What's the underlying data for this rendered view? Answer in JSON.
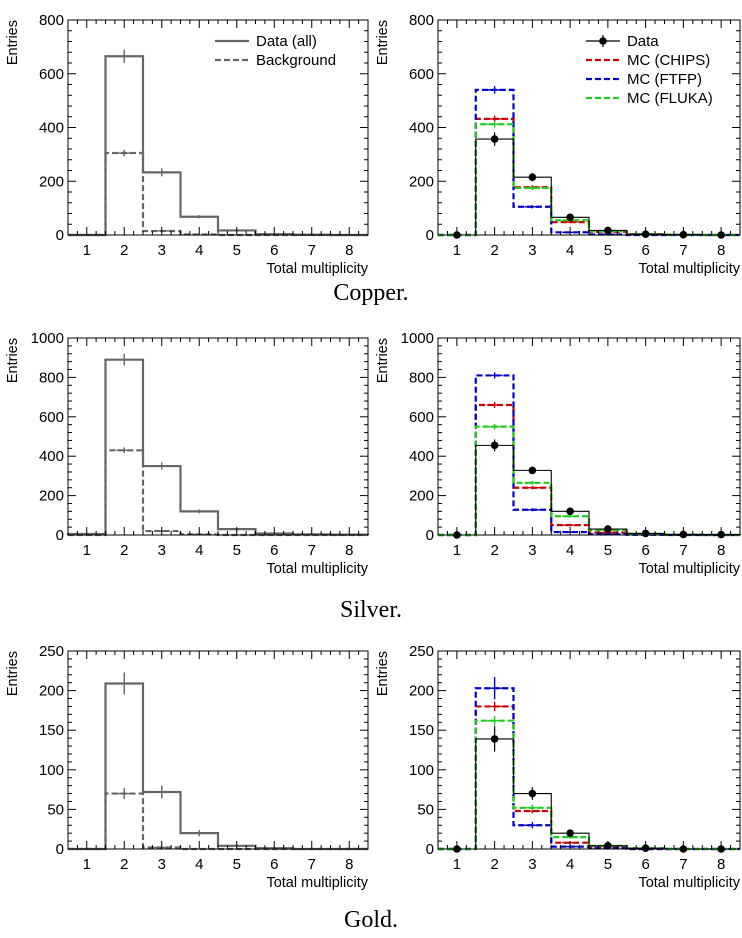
{
  "captions": [
    "Copper.",
    "Silver.",
    "Gold."
  ],
  "chart_data": [
    {
      "type": "bar",
      "panel": "copper-left",
      "xlabel": "Total multiplicity",
      "ylabel": "Entries",
      "xlim": [
        0.5,
        8.5
      ],
      "ylim": [
        0,
        800
      ],
      "xticks": [
        1,
        2,
        3,
        4,
        5,
        6,
        7,
        8
      ],
      "yticks": [
        0,
        200,
        400,
        600,
        800
      ],
      "legend": "top-right",
      "series": [
        {
          "name": "Data (all)",
          "style": "solid",
          "color": "#666666",
          "x": [
            1,
            2,
            3,
            4,
            5,
            6,
            7,
            8
          ],
          "values": [
            0,
            665,
            233,
            68,
            17,
            3,
            1,
            0
          ],
          "errors": [
            0,
            25,
            15,
            6,
            4,
            2,
            1,
            0
          ]
        },
        {
          "name": "Background",
          "style": "dashed",
          "color": "#666666",
          "x": [
            1,
            2,
            3,
            4,
            5,
            6,
            7,
            8
          ],
          "values": [
            0,
            305,
            15,
            2,
            0,
            0,
            0,
            0
          ],
          "errors": [
            0,
            12,
            3,
            0,
            0,
            0,
            0,
            0
          ]
        }
      ]
    },
    {
      "type": "bar",
      "panel": "copper-right",
      "xlabel": "Total multiplicity",
      "ylabel": "Entries",
      "xlim": [
        0.5,
        8.5
      ],
      "ylim": [
        0,
        800
      ],
      "xticks": [
        1,
        2,
        3,
        4,
        5,
        6,
        7,
        8
      ],
      "yticks": [
        0,
        200,
        400,
        600,
        800
      ],
      "legend": "top-right",
      "series": [
        {
          "name": "Data",
          "style": "points",
          "color": "#000000",
          "x": [
            1,
            2,
            3,
            4,
            5,
            6,
            7,
            8
          ],
          "values": [
            0,
            357,
            215,
            66,
            17,
            3,
            1,
            0
          ],
          "errors": [
            0,
            25,
            15,
            6,
            4,
            2,
            1,
            0
          ]
        },
        {
          "name": "MC (CHIPS)",
          "style": "dashed",
          "color": "#cc0000",
          "x": [
            1,
            2,
            3,
            4,
            5,
            6,
            7,
            8
          ],
          "values": [
            0,
            432,
            178,
            48,
            12,
            3,
            1,
            0
          ],
          "errors": [
            0,
            12,
            8,
            4,
            2,
            1,
            0,
            0
          ]
        },
        {
          "name": "MC (FTFP)",
          "style": "dashed",
          "color": "#0000cc",
          "x": [
            1,
            2,
            3,
            4,
            5,
            6,
            7,
            8
          ],
          "values": [
            0,
            540,
            105,
            10,
            2,
            0,
            0,
            0
          ],
          "errors": [
            0,
            14,
            6,
            2,
            1,
            0,
            0,
            0
          ]
        },
        {
          "name": "MC (FLUKA)",
          "style": "dashed",
          "color": "#22cc22",
          "x": [
            1,
            2,
            3,
            4,
            5,
            6,
            7,
            8
          ],
          "values": [
            0,
            412,
            175,
            55,
            14,
            3,
            1,
            0
          ],
          "errors": [
            0,
            12,
            8,
            4,
            2,
            1,
            0,
            0
          ]
        },
        {
          "name": "",
          "style": "total",
          "color": "#000000",
          "x": [
            1,
            2,
            3,
            4,
            5,
            6,
            7,
            8
          ],
          "values": [
            0,
            357,
            215,
            66,
            17,
            3,
            1,
            0
          ],
          "errors": []
        }
      ]
    },
    {
      "type": "bar",
      "panel": "silver-left",
      "xlabel": "Total multiplicity",
      "ylabel": "Entries",
      "xlim": [
        0.5,
        8.5
      ],
      "ylim": [
        0,
        1000
      ],
      "xticks": [
        1,
        2,
        3,
        4,
        5,
        6,
        7,
        8
      ],
      "yticks": [
        0,
        200,
        400,
        600,
        800,
        1000
      ],
      "series": [
        {
          "name": "Data (all)",
          "style": "solid",
          "color": "#666666",
          "x": [
            1,
            2,
            3,
            4,
            5,
            6,
            7,
            8
          ],
          "values": [
            5,
            890,
            350,
            120,
            30,
            8,
            3,
            2
          ],
          "errors": [
            0,
            30,
            18,
            10,
            5,
            3,
            2,
            1
          ]
        },
        {
          "name": "Background",
          "style": "dashed",
          "color": "#666666",
          "x": [
            1,
            2,
            3,
            4,
            5,
            6,
            7,
            8
          ],
          "values": [
            0,
            430,
            20,
            3,
            0,
            0,
            0,
            0
          ],
          "errors": [
            0,
            15,
            4,
            1,
            0,
            0,
            0,
            0
          ]
        }
      ]
    },
    {
      "type": "bar",
      "panel": "silver-right",
      "xlabel": "Total multiplicity",
      "ylabel": "Entries",
      "xlim": [
        0.5,
        8.5
      ],
      "ylim": [
        0,
        1000
      ],
      "xticks": [
        1,
        2,
        3,
        4,
        5,
        6,
        7,
        8
      ],
      "yticks": [
        0,
        200,
        400,
        600,
        800,
        1000
      ],
      "series": [
        {
          "name": "Data",
          "style": "points",
          "color": "#000000",
          "x": [
            1,
            2,
            3,
            4,
            5,
            6,
            7,
            8
          ],
          "values": [
            0,
            455,
            328,
            120,
            30,
            8,
            3,
            2
          ],
          "errors": [
            0,
            30,
            18,
            10,
            5,
            3,
            2,
            1
          ]
        },
        {
          "name": "MC (CHIPS)",
          "style": "dashed",
          "color": "#cc0000",
          "x": [
            1,
            2,
            3,
            4,
            5,
            6,
            7,
            8
          ],
          "values": [
            0,
            660,
            240,
            50,
            12,
            3,
            1,
            0
          ],
          "errors": [
            0,
            15,
            8,
            4,
            2,
            1,
            0,
            0
          ]
        },
        {
          "name": "MC (FTFP)",
          "style": "dashed",
          "color": "#0000cc",
          "x": [
            1,
            2,
            3,
            4,
            5,
            6,
            7,
            8
          ],
          "values": [
            0,
            810,
            128,
            15,
            3,
            1,
            0,
            0
          ],
          "errors": [
            0,
            16,
            8,
            3,
            1,
            0,
            0,
            0
          ]
        },
        {
          "name": "MC (FLUKA)",
          "style": "dashed",
          "color": "#22cc22",
          "x": [
            1,
            2,
            3,
            4,
            5,
            6,
            7,
            8
          ],
          "values": [
            0,
            550,
            265,
            95,
            25,
            6,
            2,
            1
          ],
          "errors": [
            0,
            14,
            10,
            6,
            3,
            1,
            0,
            0
          ]
        },
        {
          "name": "",
          "style": "total",
          "color": "#000000",
          "x": [
            1,
            2,
            3,
            4,
            5,
            6,
            7,
            8
          ],
          "values": [
            0,
            455,
            328,
            120,
            30,
            8,
            3,
            2
          ],
          "errors": []
        }
      ]
    },
    {
      "type": "bar",
      "panel": "gold-left",
      "xlabel": "Total multiplicity",
      "ylabel": "Entries",
      "xlim": [
        0.5,
        8.5
      ],
      "ylim": [
        0,
        250
      ],
      "xticks": [
        1,
        2,
        3,
        4,
        5,
        6,
        7,
        8
      ],
      "yticks": [
        0,
        50,
        100,
        150,
        200,
        250
      ],
      "series": [
        {
          "name": "Data (all)",
          "style": "solid",
          "color": "#666666",
          "x": [
            1,
            2,
            3,
            4,
            5,
            6,
            7,
            8
          ],
          "values": [
            0,
            209,
            72,
            20,
            4,
            1,
            0,
            0
          ],
          "errors": [
            0,
            14,
            8,
            4,
            2,
            1,
            0,
            0
          ]
        },
        {
          "name": "Background",
          "style": "dashed",
          "color": "#666666",
          "x": [
            1,
            2,
            3,
            4,
            5,
            6,
            7,
            8
          ],
          "values": [
            0,
            70,
            2,
            0,
            0,
            0,
            0,
            0
          ],
          "errors": [
            0,
            7,
            1,
            0,
            0,
            0,
            0,
            0
          ]
        }
      ]
    },
    {
      "type": "bar",
      "panel": "gold-right",
      "xlabel": "Total multiplicity",
      "ylabel": "Entries",
      "xlim": [
        0.5,
        8.5
      ],
      "ylim": [
        0,
        250
      ],
      "xticks": [
        1,
        2,
        3,
        4,
        5,
        6,
        7,
        8
      ],
      "yticks": [
        0,
        50,
        100,
        150,
        200,
        250
      ],
      "series": [
        {
          "name": "Data",
          "style": "points",
          "color": "#000000",
          "x": [
            1,
            2,
            3,
            4,
            5,
            6,
            7,
            8
          ],
          "values": [
            0,
            139,
            70,
            20,
            4,
            1,
            0,
            0
          ],
          "errors": [
            0,
            16,
            8,
            4,
            2,
            1,
            0,
            0
          ]
        },
        {
          "name": "MC (CHIPS)",
          "style": "dashed",
          "color": "#cc0000",
          "x": [
            1,
            2,
            3,
            4,
            5,
            6,
            7,
            8
          ],
          "values": [
            0,
            180,
            48,
            8,
            2,
            0,
            0,
            0
          ],
          "errors": [
            0,
            6,
            3,
            1,
            0,
            0,
            0,
            0
          ]
        },
        {
          "name": "MC (FTFP)",
          "style": "dashed",
          "color": "#0000cc",
          "x": [
            1,
            2,
            3,
            4,
            5,
            6,
            7,
            8
          ],
          "values": [
            0,
            203,
            30,
            3,
            1,
            0,
            0,
            0
          ],
          "errors": [
            0,
            14,
            4,
            1,
            0,
            0,
            0,
            0
          ]
        },
        {
          "name": "MC (FLUKA)",
          "style": "dashed",
          "color": "#22cc22",
          "x": [
            1,
            2,
            3,
            4,
            5,
            6,
            7,
            8
          ],
          "values": [
            0,
            162,
            52,
            15,
            4,
            1,
            0,
            0
          ],
          "errors": [
            0,
            6,
            4,
            2,
            1,
            0,
            0,
            0
          ]
        },
        {
          "name": "",
          "style": "total",
          "color": "#000000",
          "x": [
            1,
            2,
            3,
            4,
            5,
            6,
            7,
            8
          ],
          "values": [
            0,
            139,
            70,
            20,
            4,
            1,
            0,
            0
          ],
          "errors": []
        }
      ]
    }
  ]
}
